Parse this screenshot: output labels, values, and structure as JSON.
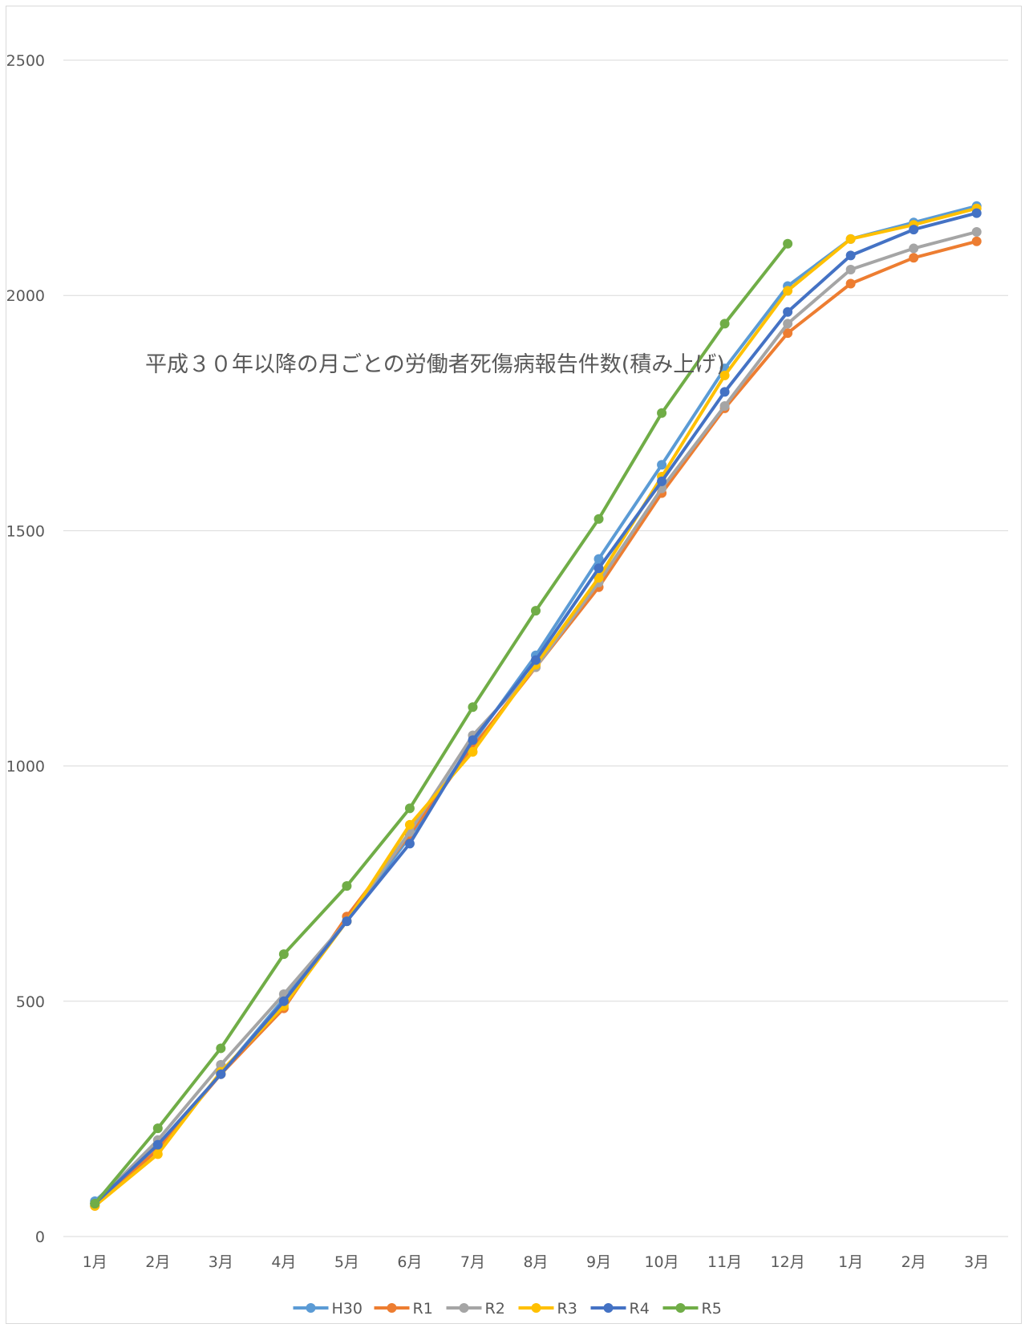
{
  "chart_data": {
    "type": "line",
    "title": "平成３０年以降の月ごとの労働者死傷病報告件数(積み上げ)",
    "xlabel": "",
    "ylabel": "",
    "ylim": [
      0,
      2500
    ],
    "y_ticks": [
      0,
      500,
      1000,
      1500,
      2000,
      2500
    ],
    "grid": true,
    "legend_position": "bottom",
    "categories": [
      "1月",
      "2月",
      "3月",
      "4月",
      "5月",
      "6月",
      "7月",
      "8月",
      "9月",
      "10月",
      "11月",
      "12月",
      "1月",
      "2月",
      "3月"
    ],
    "series": [
      {
        "name": "H30",
        "color": "#5b9bd5",
        "values": [
          75,
          195,
          345,
          505,
          670,
          850,
          1050,
          1235,
          1440,
          1640,
          1845,
          2020,
          2120,
          2155,
          2190
        ]
      },
      {
        "name": "R1",
        "color": "#ed7d31",
        "values": [
          65,
          185,
          345,
          485,
          680,
          855,
          1040,
          1210,
          1380,
          1580,
          1760,
          1920,
          2025,
          2080,
          2115
        ]
      },
      {
        "name": "R2",
        "color": "#a5a5a5",
        "values": [
          70,
          205,
          365,
          515,
          670,
          860,
          1065,
          1210,
          1390,
          1590,
          1765,
          1940,
          2055,
          2100,
          2135
        ]
      },
      {
        "name": "R3",
        "color": "#ffc000",
        "values": [
          65,
          175,
          350,
          490,
          670,
          875,
          1030,
          1215,
          1400,
          1615,
          1830,
          2010,
          2120,
          2150,
          2185
        ]
      },
      {
        "name": "R4",
        "color": "#4472c4",
        "values": [
          70,
          195,
          345,
          500,
          670,
          835,
          1055,
          1225,
          1420,
          1605,
          1795,
          1965,
          2085,
          2140,
          2175
        ]
      },
      {
        "name": "R5",
        "color": "#70ad47",
        "values": [
          70,
          230,
          400,
          600,
          745,
          910,
          1125,
          1330,
          1525,
          1750,
          1940,
          2110,
          null,
          null,
          null
        ]
      }
    ]
  }
}
